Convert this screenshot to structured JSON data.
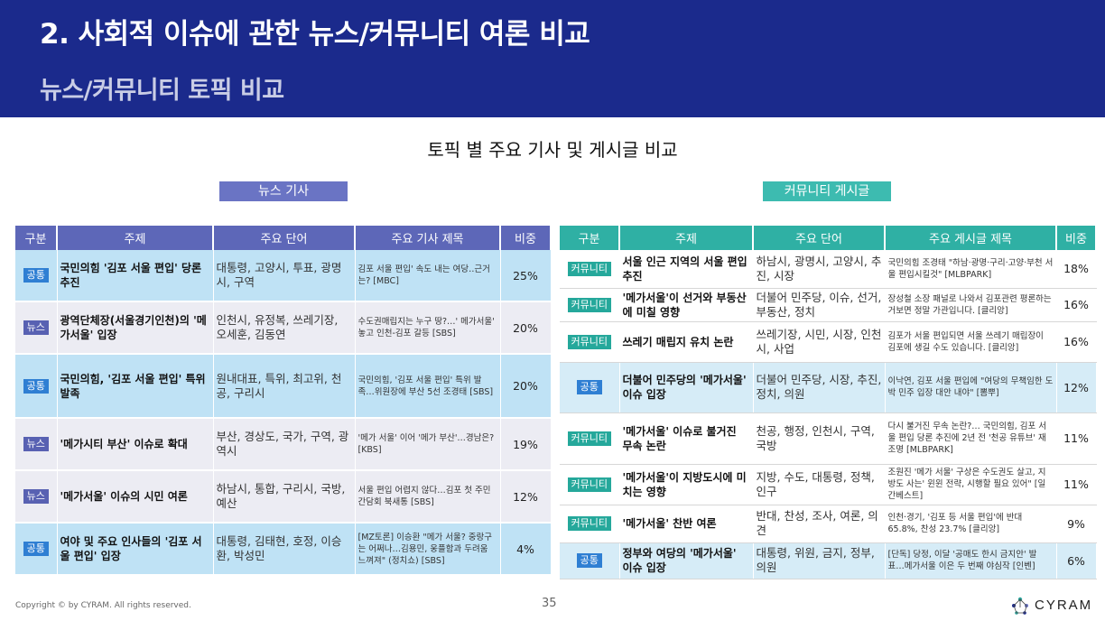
{
  "header": {
    "title": "2. 사회적 이슈에 관한 뉴스/커뮤니티 여론 비교",
    "subtitle": "뉴스/커뮤니티 토픽 비교"
  },
  "section_title": "토픽 별 주요 기사 및 게시글 비교",
  "news": {
    "label": "뉴스 기사",
    "headers": [
      "구분",
      "주제",
      "주요 단어",
      "주요 기사 제목",
      "비중"
    ],
    "rows": [
      {
        "cat": "공통",
        "topic": "국민의힘 '김포 서울 편입' 당론 추진",
        "words": "대통령, 고양시, 투표, 광명시, 구역",
        "headline": "김포 서울 편입' 속도 내는 여당‥근거는? [MBC]",
        "share": "25%"
      },
      {
        "cat": "뉴스",
        "topic": "광역단체장(서울경기인천)의 '메가서울' 입장",
        "words": "인천시, 유정복, 쓰레기장, 오세훈, 김동연",
        "headline": "수도권매립지는 누구 땅?…' 메가서울' 놓고 인천-김포 갈등 [SBS]",
        "share": "20%"
      },
      {
        "cat": "공통",
        "topic": "국민의힘, '김포 서울 편입' 특위 발족",
        "words": "원내대표, 특위, 최고위, 천공, 구리시",
        "headline": "국민의힘, '김포 서울 편입' 특위 발족…위원장에 부산 5선 조경태 [SBS]",
        "share": "20%"
      },
      {
        "cat": "뉴스",
        "topic": "'메가시티 부산' 이슈로 확대",
        "words": "부산, 경상도, 국가, 구역, 광역시",
        "headline": "'메가 서울' 이어 '메가 부산'…경남은? [KBS]",
        "share": "19%"
      },
      {
        "cat": "뉴스",
        "topic": "'메가서울' 이슈의 시민 여론",
        "words": "하남시, 통합, 구리시, 국방, 예산",
        "headline": "서울 편입 어렵지 않다…김포 첫 주민간담회 북새통 [SBS]",
        "share": "12%"
      },
      {
        "cat": "공통",
        "topic": "여야 및 주요 인사들의 '김포 서울 편입' 입장",
        "words": "대통령, 김태현, 호정, 이승환, 박성민",
        "headline": "[MZ토론] 이승환 \"메가 서울? 중랑구는 어쩌나…김용민, 웅플함과 두려움 느껴져\" (정치쇼) [SBS]",
        "share": "4%"
      }
    ]
  },
  "community": {
    "label": "커뮤니티 게시글",
    "headers": [
      "구분",
      "주제",
      "주요 단어",
      "주요 게시글 제목",
      "비중"
    ],
    "rows": [
      {
        "cat": "커뮤니티",
        "topic": "서울 인근 지역의 서울 편입 추진",
        "words": "하남시, 광명시, 고양시, 추진, 시장",
        "headline": "국민의힘 조경태 \"하남·광명·구리·고양·부천 서울 편입시킬것\" [MLBPARK]",
        "share": "18%"
      },
      {
        "cat": "커뮤니티",
        "topic": "'메가서울'이 선거와 부동산에 미칠 영향",
        "words": "더불어 민주당, 이슈, 선거, 부동산, 정치",
        "headline": "장성철 소장 패널로 나와서 김포관련 평론하는거보면 정말 가관입니다. [클리앙]",
        "share": "16%"
      },
      {
        "cat": "커뮤니티",
        "topic": "쓰레기 매립지 유치 논란",
        "words": "쓰레기장, 시민, 시장, 인천시, 사업",
        "headline": "김포가 서울 편입되면 서울 쓰레기 매립장이 김포에 생길 수도 있습니다. [클리앙]",
        "share": "16%"
      },
      {
        "cat": "공통",
        "topic": "더불어 민주당의 '메가서울' 이슈 입장",
        "words": "더불어 민주당, 시장, 추진, 정치, 의원",
        "headline": "이낙연, 김포 서울 편입에 \"여당의 무책임한 도박 민주 입장 대안 내야\" [뽐뿌]",
        "share": "12%"
      },
      {
        "cat": "커뮤니티",
        "topic": "'메가서울' 이슈로 불거진 무속 논란",
        "words": "천공, 행정, 인천시, 구역, 국방",
        "headline": "다시 불거진 무속 논란?… 국민의힘, 김포 서울 편입 당론 추진에 2년 전 '천공 유튜브' 재조명 [MLBPARK]",
        "share": "11%"
      },
      {
        "cat": "커뮤니티",
        "topic": "'메가서울'이 지방도시에 미치는 영향",
        "words": "지방, 수도, 대통령, 정책, 인구",
        "headline": "조원진 '메가 서울' 구상은 수도권도 살고, 지방도 사는' 윈윈 전략, 시행할 필요 있어\" [일간베스트]",
        "share": "11%"
      },
      {
        "cat": "커뮤니티",
        "topic": "'메가서울' 찬반 여론",
        "words": "반대, 찬성, 조사, 여론, 의견",
        "headline": "인천·경기, '김포 등 서울 편입'에 반대 65.8%, 찬성 23.7% [클리앙]",
        "share": "9%"
      },
      {
        "cat": "공통",
        "topic": "정부와 여당의 '메가서울' 이슈 입장",
        "words": "대통령, 위원, 금지, 정부, 의원",
        "headline": "[단독] 당정, 이달 '공매도 한시 금지안' 발표…메가서울 이은 두 번째 야심작 [인벤]",
        "share": "6%"
      }
    ]
  },
  "footer": {
    "copyright": "Copyright © by CYRAM. All rights reserved.",
    "page": "35",
    "logo": "CYRAM"
  },
  "colors": {
    "header_bg": "#1b2a8c",
    "news_accent": "#5d67b8",
    "community_accent": "#2fb0a4",
    "common_tag": "#2f7fd3",
    "highlight_row": "#bfe2f5"
  }
}
